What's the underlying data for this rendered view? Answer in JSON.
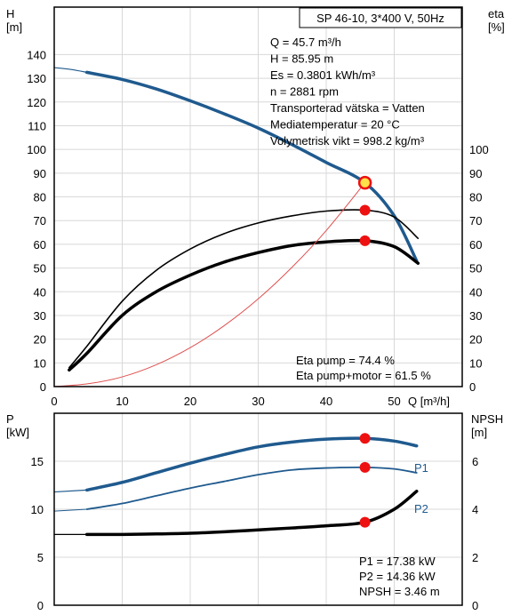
{
  "colors": {
    "blue": "#1f5a8e",
    "black": "#000000",
    "red": "#ee1111",
    "system_curve": "#e05050",
    "grid": "#d8d8d8",
    "yellow": "#ffe24a"
  },
  "chart_data": [
    {
      "type": "line",
      "title": "SP 46-10, 3*400 V, 50Hz",
      "ylabel_left": "H\n[m]",
      "ylabel_right": "eta\n[%]",
      "xlabel": "Q [m³/h]",
      "xlim": [
        0,
        60
      ],
      "ylim_left": [
        0,
        160
      ],
      "ylim_right": [
        0,
        160
      ],
      "grid": true,
      "x_ticks": [
        "0",
        "10",
        "20",
        "30",
        "40",
        "50"
      ],
      "y_ticks_left": [
        "0",
        "10",
        "20",
        "30",
        "40",
        "50",
        "60",
        "70",
        "80",
        "90",
        "100",
        "110",
        "120",
        "130",
        "140"
      ],
      "y_ticks_right": [
        "0",
        "10",
        "20",
        "30",
        "40",
        "50",
        "60",
        "70",
        "80",
        "90",
        "100"
      ],
      "series": [
        {
          "key": "H",
          "x": [
            4.8,
            10,
            15,
            20,
            25,
            30,
            35,
            40,
            45.7,
            50,
            53.3
          ],
          "y": [
            132.5,
            129.5,
            125.5,
            120.5,
            115,
            109,
            102,
            94.5,
            85.95,
            72,
            53
          ]
        },
        {
          "key": "H_extrapolated",
          "x": [
            0,
            2.5,
            4.8
          ],
          "y": [
            134.5,
            133.7,
            132.5
          ]
        },
        {
          "key": "eta_pump",
          "x": [
            2.2,
            4.8,
            10,
            15,
            20,
            25,
            30,
            35,
            40,
            45.7,
            50,
            53.5
          ],
          "y": [
            8,
            17,
            36,
            49,
            58,
            64.5,
            69,
            72,
            74,
            74.4,
            71.5,
            62.5
          ]
        },
        {
          "key": "eta_pump_motor",
          "x": [
            2.2,
            4.8,
            10,
            15,
            20,
            25,
            30,
            35,
            40,
            45.7,
            50,
            53.5
          ],
          "y": [
            7,
            14,
            30,
            40,
            47,
            52.5,
            56.5,
            59.5,
            61,
            61.5,
            59,
            52
          ]
        },
        {
          "key": "system_curve",
          "x": [
            0,
            5,
            10,
            15,
            20,
            25,
            30,
            35,
            40,
            45.7
          ],
          "y": [
            0,
            1.2,
            4.1,
            9.2,
            16.4,
            25.7,
            37,
            50.4,
            65.8,
            85.95
          ]
        }
      ],
      "points": [
        {
          "x": 45.7,
          "y": 85.95,
          "highlight": true
        },
        {
          "x": 45.7,
          "y": 74.4
        },
        {
          "x": 45.7,
          "y": 61.5
        }
      ],
      "info": [
        "Q = 45.7 m³/h",
        "H = 85.95 m",
        "Es = 0.3801 kWh/m³",
        "n = 2881 rpm",
        "Transporterad vätska = Vatten",
        "Mediatemperatur = 20 °C",
        "Volymetrisk vikt = 998.2 kg/m³"
      ],
      "annotations": [
        "Eta pump = 74.4 %",
        "Eta pump+motor = 61.5 %"
      ]
    },
    {
      "type": "line",
      "ylabel_left": "P\n[kW]",
      "ylabel_right": "NPSH\n[m]",
      "xlim": [
        0,
        60
      ],
      "ylim_left": [
        0,
        20
      ],
      "ylim_right": [
        0,
        8
      ],
      "grid": true,
      "y_ticks_left": [
        "0",
        "5",
        "10",
        "15"
      ],
      "y_ticks_right": [
        "0",
        "2",
        "4",
        "6"
      ],
      "series": [
        {
          "key": "P1",
          "name": "P1",
          "x": [
            4.8,
            10,
            15,
            20,
            25,
            30,
            35,
            40,
            45.7,
            50,
            53.3
          ],
          "y": [
            12,
            12.8,
            13.8,
            14.8,
            15.7,
            16.5,
            17,
            17.3,
            17.38,
            17.1,
            16.6
          ]
        },
        {
          "key": "P1_ext",
          "x": [
            0,
            4.8
          ],
          "y": [
            11.8,
            12
          ]
        },
        {
          "key": "P2",
          "name": "P2",
          "x": [
            4.8,
            10,
            15,
            20,
            25,
            30,
            35,
            40,
            45.7,
            50,
            53.3
          ],
          "y": [
            10,
            10.6,
            11.4,
            12.2,
            12.9,
            13.6,
            14.1,
            14.3,
            14.36,
            14.2,
            13.8
          ]
        },
        {
          "key": "P2_ext",
          "x": [
            0,
            4.8
          ],
          "y": [
            9.8,
            10
          ]
        },
        {
          "key": "NPSH",
          "axis": "right",
          "x": [
            4.8,
            10,
            15,
            20,
            25,
            30,
            35,
            40,
            45.7,
            50,
            53.3
          ],
          "y": [
            2.95,
            2.95,
            2.97,
            3.0,
            3.06,
            3.14,
            3.22,
            3.31,
            3.46,
            4.0,
            4.75
          ]
        },
        {
          "key": "NPSH_ext",
          "axis": "right",
          "x": [
            0,
            4.8
          ],
          "y": [
            2.95,
            2.95
          ]
        }
      ],
      "points": [
        {
          "x": 45.7,
          "y": 17.38
        },
        {
          "x": 45.7,
          "y": 14.36
        },
        {
          "x": 45.7,
          "y": 3.46,
          "axis": "right"
        }
      ],
      "annotations": [
        "P1 = 17.38 kW",
        "P2 = 14.36 kW",
        "NPSH = 3.46 m"
      ]
    }
  ]
}
